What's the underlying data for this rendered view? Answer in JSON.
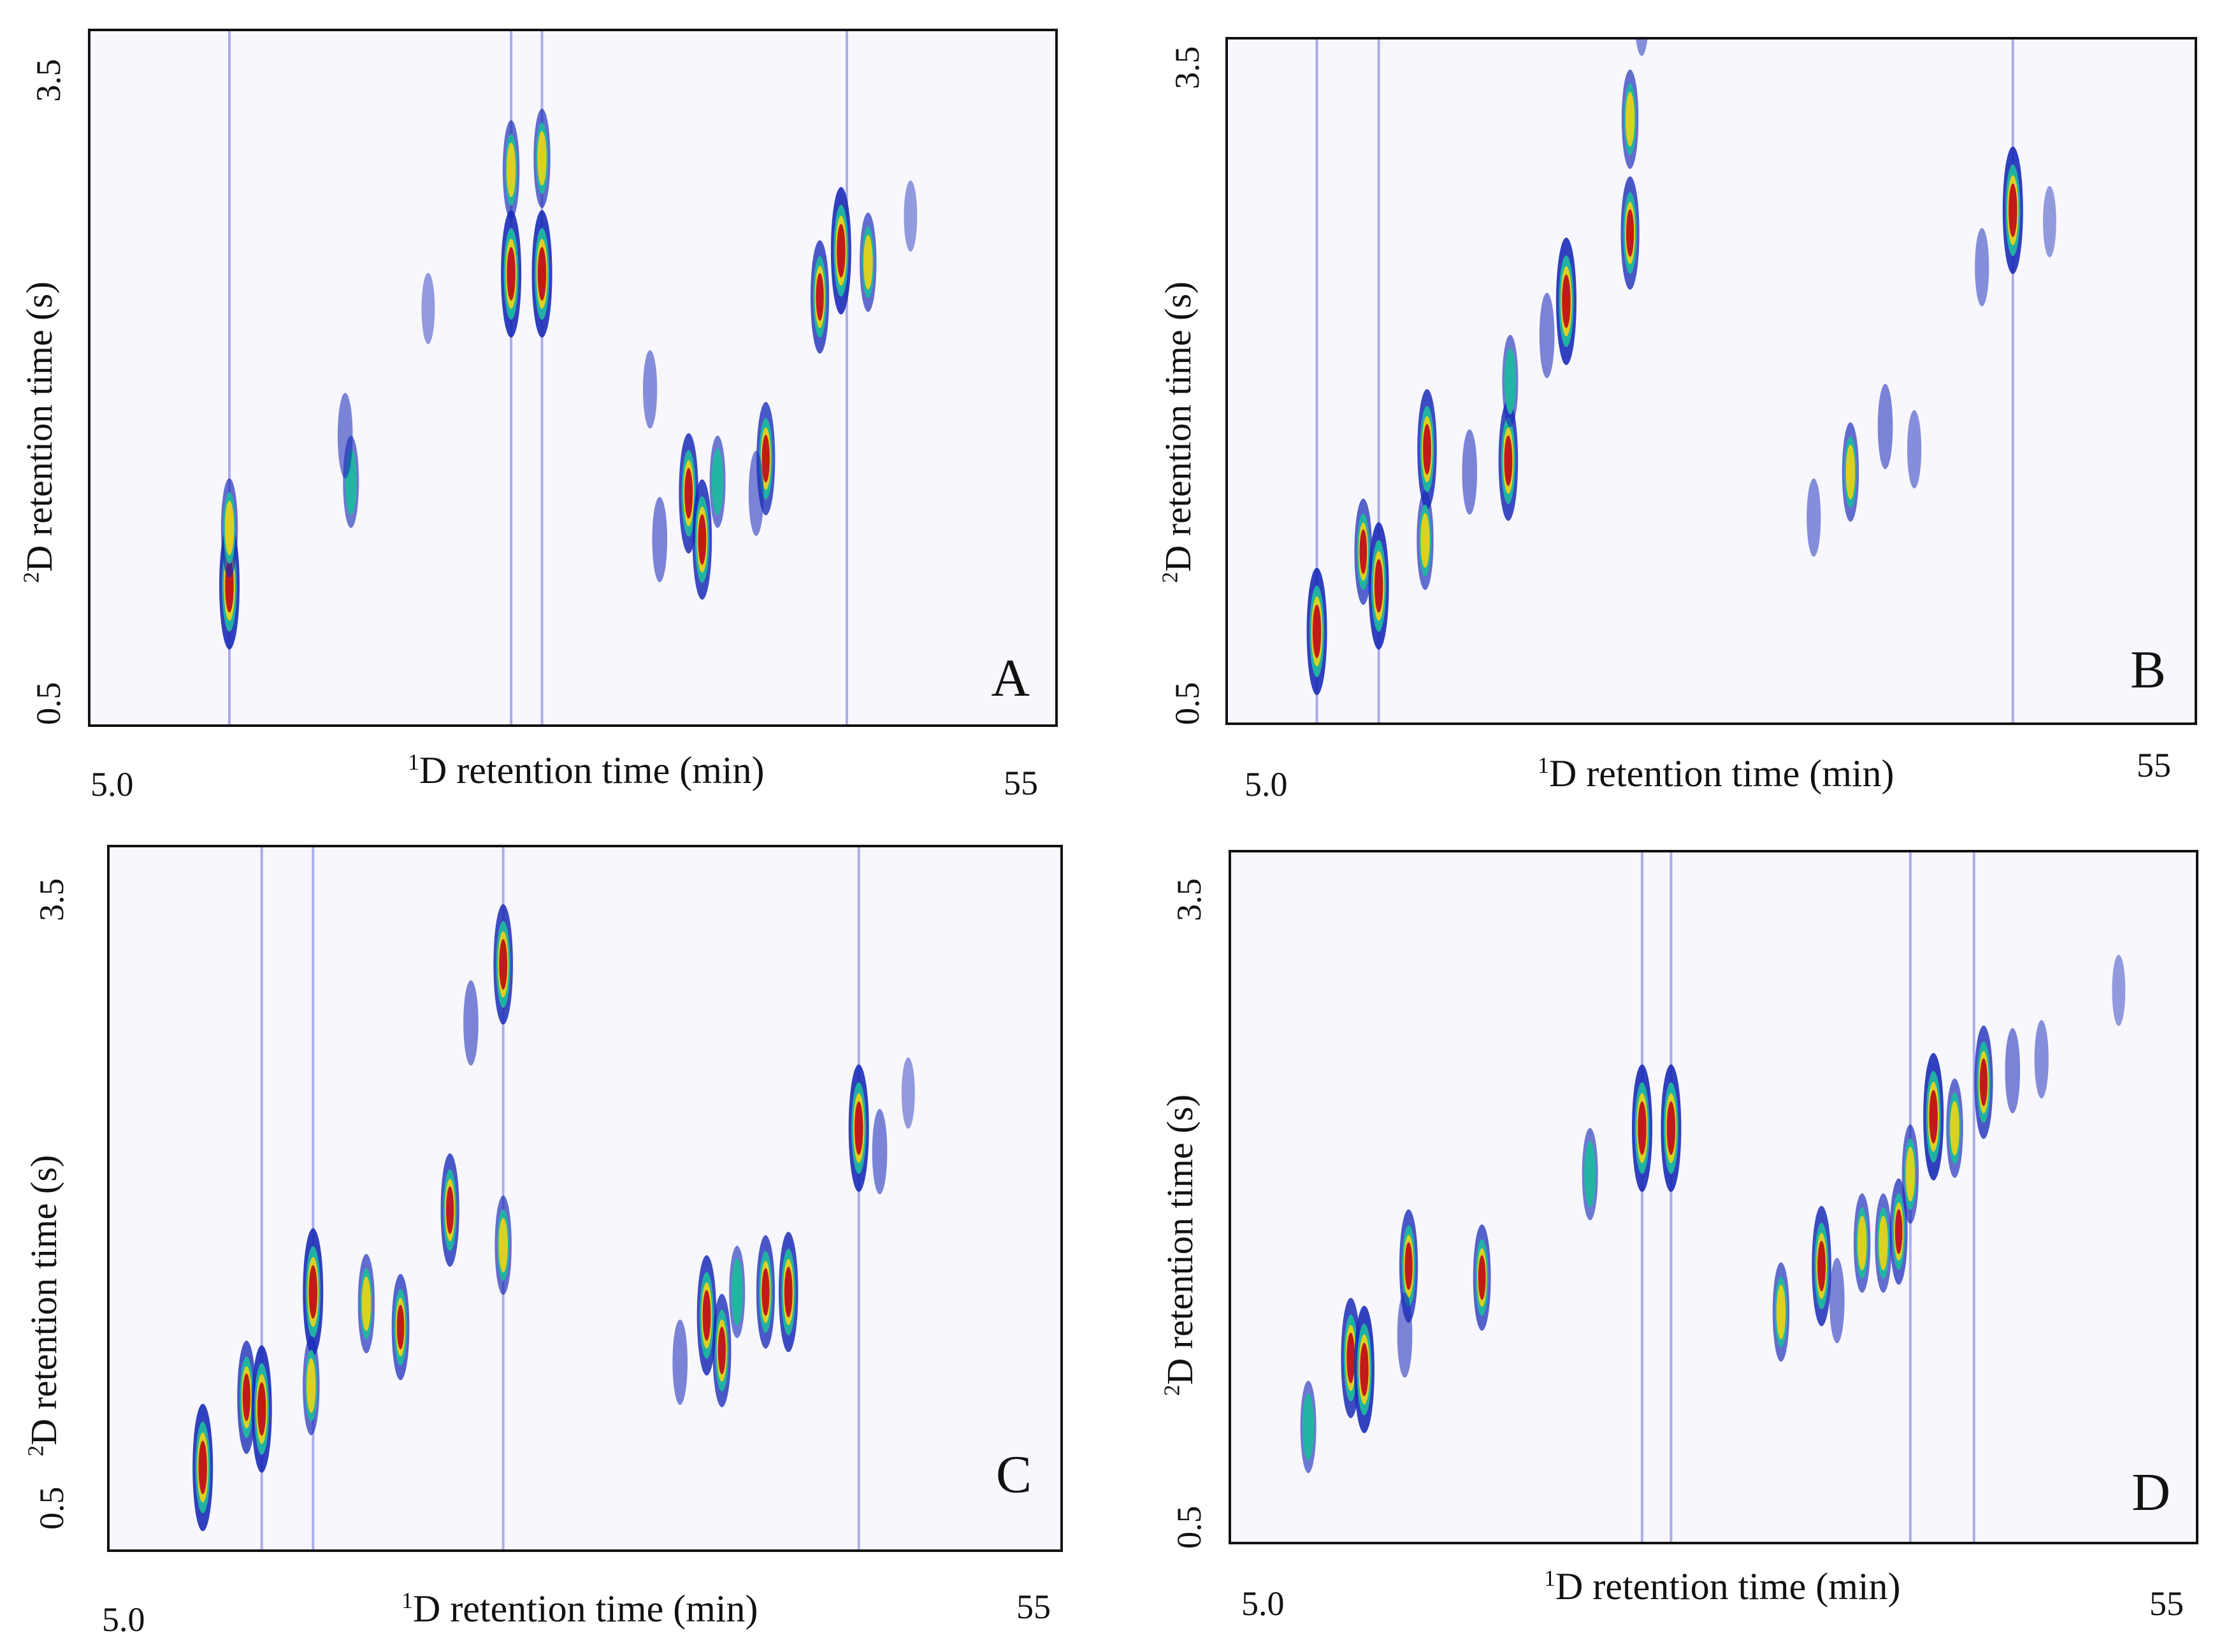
{
  "chart_data": [
    {
      "type": "heatmap",
      "panel_label": "A",
      "xlabel_sup": "1",
      "xlabel": "D retention time (min)",
      "ylabel_sup": "2",
      "ylabel": "D retention time (s)",
      "xlim": [
        5.0,
        55
      ],
      "ylim": [
        0.5,
        3.5
      ],
      "xtick_labels": [
        "5.0",
        "55"
      ],
      "ytick_labels": [
        "0.5",
        "3.5"
      ],
      "streaks": [
        12.2,
        26.8,
        28.4,
        44.2
      ],
      "peaks": [
        {
          "x": 12.2,
          "y": 1.1,
          "i": 1.0
        },
        {
          "x": 12.2,
          "y": 1.35,
          "i": 0.6
        },
        {
          "x": 18.5,
          "y": 1.55,
          "i": 0.5
        },
        {
          "x": 18.2,
          "y": 1.75,
          "i": 0.4
        },
        {
          "x": 26.8,
          "y": 2.45,
          "i": 1.0
        },
        {
          "x": 28.4,
          "y": 2.45,
          "i": 1.0
        },
        {
          "x": 26.8,
          "y": 2.9,
          "i": 0.6
        },
        {
          "x": 28.4,
          "y": 2.95,
          "i": 0.6
        },
        {
          "x": 34.5,
          "y": 1.3,
          "i": 0.4
        },
        {
          "x": 36.0,
          "y": 1.5,
          "i": 0.9
        },
        {
          "x": 36.7,
          "y": 1.3,
          "i": 0.9
        },
        {
          "x": 37.5,
          "y": 1.55,
          "i": 0.5
        },
        {
          "x": 40.0,
          "y": 1.65,
          "i": 0.8
        },
        {
          "x": 39.5,
          "y": 1.5,
          "i": 0.4
        },
        {
          "x": 42.8,
          "y": 2.35,
          "i": 0.8
        },
        {
          "x": 43.9,
          "y": 2.55,
          "i": 1.0
        },
        {
          "x": 45.3,
          "y": 2.5,
          "i": 0.6
        },
        {
          "x": 34.0,
          "y": 1.95,
          "i": 0.3
        },
        {
          "x": 22.5,
          "y": 2.3,
          "i": 0.2
        },
        {
          "x": 47.5,
          "y": 2.7,
          "i": 0.2
        }
      ]
    },
    {
      "type": "heatmap",
      "panel_label": "B",
      "xlabel_sup": "1",
      "xlabel": "D retention time (min)",
      "ylabel_sup": "2",
      "ylabel": "D retention time (s)",
      "xlim": [
        5.0,
        55
      ],
      "ylim": [
        0.5,
        3.5
      ],
      "xtick_labels": [
        "5.0",
        "55"
      ],
      "ytick_labels": [
        "0.5",
        "3.5"
      ],
      "streaks": [
        9.6,
        12.8,
        45.6
      ],
      "peaks": [
        {
          "x": 9.6,
          "y": 0.9,
          "i": 1.0
        },
        {
          "x": 12.0,
          "y": 1.25,
          "i": 0.7
        },
        {
          "x": 12.8,
          "y": 1.1,
          "i": 1.0
        },
        {
          "x": 15.3,
          "y": 1.7,
          "i": 0.9
        },
        {
          "x": 15.2,
          "y": 1.3,
          "i": 0.6
        },
        {
          "x": 17.5,
          "y": 1.6,
          "i": 0.4
        },
        {
          "x": 19.5,
          "y": 1.65,
          "i": 0.9
        },
        {
          "x": 19.6,
          "y": 2.0,
          "i": 0.5
        },
        {
          "x": 22.5,
          "y": 2.35,
          "i": 1.0
        },
        {
          "x": 21.5,
          "y": 2.2,
          "i": 0.4
        },
        {
          "x": 25.8,
          "y": 2.65,
          "i": 0.8
        },
        {
          "x": 25.8,
          "y": 3.15,
          "i": 0.6
        },
        {
          "x": 26.4,
          "y": 3.6,
          "i": 0.3
        },
        {
          "x": 37.2,
          "y": 1.6,
          "i": 0.6
        },
        {
          "x": 39.0,
          "y": 1.8,
          "i": 0.4
        },
        {
          "x": 40.5,
          "y": 1.7,
          "i": 0.3
        },
        {
          "x": 35.3,
          "y": 1.4,
          "i": 0.3
        },
        {
          "x": 45.6,
          "y": 2.75,
          "i": 1.0
        },
        {
          "x": 44.0,
          "y": 2.5,
          "i": 0.3
        },
        {
          "x": 47.5,
          "y": 2.7,
          "i": 0.2
        }
      ]
    },
    {
      "type": "heatmap",
      "panel_label": "C",
      "xlabel_sup": "1",
      "xlabel": "D retention time (min)",
      "ylabel_sup": "2",
      "ylabel": "D retention time (s)",
      "xlim": [
        5.0,
        55
      ],
      "ylim": [
        0.5,
        3.5
      ],
      "xtick_labels": [
        "5.0",
        "55"
      ],
      "ytick_labels": [
        "0.5",
        "3.5"
      ],
      "streaks": [
        13.0,
        15.7,
        25.7,
        44.4
      ],
      "peaks": [
        {
          "x": 9.9,
          "y": 0.85,
          "i": 1.0
        },
        {
          "x": 12.2,
          "y": 1.15,
          "i": 0.8
        },
        {
          "x": 13.0,
          "y": 1.1,
          "i": 1.0
        },
        {
          "x": 15.7,
          "y": 1.6,
          "i": 1.0
        },
        {
          "x": 15.6,
          "y": 1.2,
          "i": 0.6
        },
        {
          "x": 18.5,
          "y": 1.55,
          "i": 0.6
        },
        {
          "x": 20.3,
          "y": 1.45,
          "i": 0.7
        },
        {
          "x": 22.9,
          "y": 1.95,
          "i": 0.8
        },
        {
          "x": 25.7,
          "y": 1.8,
          "i": 0.6
        },
        {
          "x": 25.7,
          "y": 3.0,
          "i": 0.9
        },
        {
          "x": 24.0,
          "y": 2.75,
          "i": 0.4
        },
        {
          "x": 35.0,
          "y": 1.3,
          "i": 0.4
        },
        {
          "x": 36.4,
          "y": 1.5,
          "i": 0.9
        },
        {
          "x": 37.2,
          "y": 1.35,
          "i": 0.8
        },
        {
          "x": 38.0,
          "y": 1.6,
          "i": 0.5
        },
        {
          "x": 39.5,
          "y": 1.6,
          "i": 0.8
        },
        {
          "x": 40.7,
          "y": 1.6,
          "i": 0.9
        },
        {
          "x": 44.4,
          "y": 2.3,
          "i": 1.0
        },
        {
          "x": 45.5,
          "y": 2.2,
          "i": 0.4
        },
        {
          "x": 47.0,
          "y": 2.45,
          "i": 0.2
        }
      ]
    },
    {
      "type": "heatmap",
      "panel_label": "D",
      "xlabel_sup": "1",
      "xlabel": "D retention time (min)",
      "ylabel_sup": "2",
      "ylabel": "D retention time (s)",
      "xlim": [
        5.0,
        55
      ],
      "ylim": [
        0.5,
        3.5
      ],
      "xtick_labels": [
        "5.0",
        "55"
      ],
      "ytick_labels": [
        "0.5",
        "3.5"
      ],
      "streaks": [
        26.3,
        27.8,
        40.2,
        43.5
      ],
      "peaks": [
        {
          "x": 9.0,
          "y": 1.0,
          "i": 0.5
        },
        {
          "x": 11.2,
          "y": 1.3,
          "i": 0.9
        },
        {
          "x": 11.9,
          "y": 1.25,
          "i": 1.0
        },
        {
          "x": 14.2,
          "y": 1.7,
          "i": 0.8
        },
        {
          "x": 14.0,
          "y": 1.4,
          "i": 0.4
        },
        {
          "x": 18.0,
          "y": 1.65,
          "i": 0.7
        },
        {
          "x": 23.6,
          "y": 2.1,
          "i": 0.5
        },
        {
          "x": 26.3,
          "y": 2.3,
          "i": 1.0
        },
        {
          "x": 27.8,
          "y": 2.3,
          "i": 1.0
        },
        {
          "x": 33.5,
          "y": 1.5,
          "i": 0.6
        },
        {
          "x": 35.6,
          "y": 1.7,
          "i": 0.9
        },
        {
          "x": 36.4,
          "y": 1.55,
          "i": 0.4
        },
        {
          "x": 37.7,
          "y": 1.8,
          "i": 0.6
        },
        {
          "x": 38.8,
          "y": 1.8,
          "i": 0.6
        },
        {
          "x": 39.6,
          "y": 1.85,
          "i": 0.7
        },
        {
          "x": 40.2,
          "y": 2.1,
          "i": 0.6
        },
        {
          "x": 41.4,
          "y": 2.35,
          "i": 1.0
        },
        {
          "x": 42.5,
          "y": 2.3,
          "i": 0.6
        },
        {
          "x": 44.0,
          "y": 2.5,
          "i": 0.8
        },
        {
          "x": 45.5,
          "y": 2.55,
          "i": 0.4
        },
        {
          "x": 47.0,
          "y": 2.6,
          "i": 0.3
        },
        {
          "x": 51.0,
          "y": 2.9,
          "i": 0.2
        }
      ]
    }
  ]
}
